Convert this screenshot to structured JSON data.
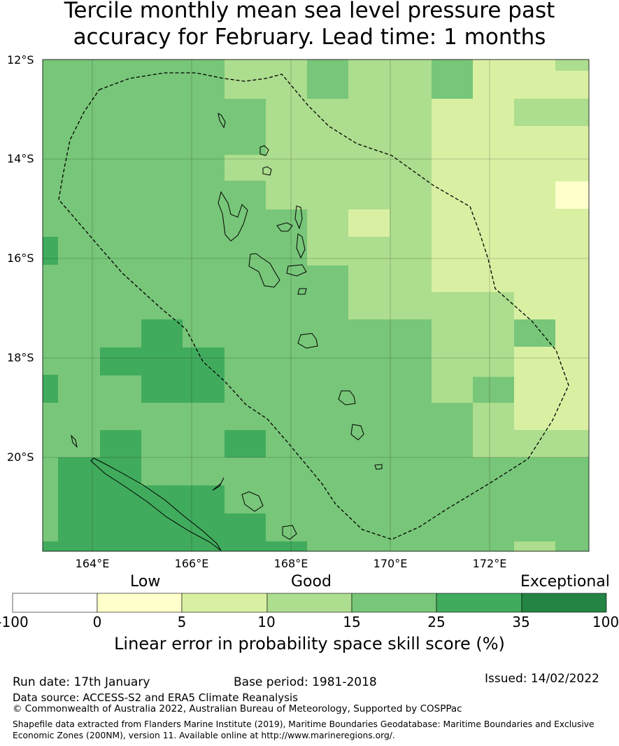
{
  "title_line1": "Tercile monthly mean sea level pressure past",
  "title_line2": "accuracy for February. Lead time: 1 months",
  "lat_labels": [
    "12°S",
    "14°S",
    "16°S",
    "18°S",
    "20°S"
  ],
  "lon_labels": [
    "164°E",
    "166°E",
    "168°E",
    "170°E",
    "172°E"
  ],
  "colorbar": {
    "categories": [
      "Low",
      "Good",
      "Exceptional"
    ],
    "ticks": [
      "-100",
      "0",
      "5",
      "10",
      "15",
      "25",
      "35",
      "100"
    ],
    "colors": [
      "#ffffff",
      "#ffffcc",
      "#d9f0a3",
      "#addd8e",
      "#78c679",
      "#41ab5d",
      "#238443"
    ],
    "title": "Linear error in probability space skill score (%)"
  },
  "footer": {
    "run_date": "Run date: 17th January",
    "base_period": "Base period: 1981-2018",
    "issued": "Issued: 14/02/2022",
    "data_source": "Data source: ACCESS-S2 and ERA5 Climate Reanalysis",
    "copyright": "© Commonwealth of Australia 2022, Australian Bureau of Meteorology, Supported by COSPPac",
    "shapefile_line1": "Shapefile data extracted from Flanders Marine Institute (2019), Maritime Boundaries Geodatabase: Maritime Boundaries and Exclusive",
    "shapefile_line2": "Economic Zones (200NM), version 11. Available online at http://www.marineregions.org/."
  }
}
